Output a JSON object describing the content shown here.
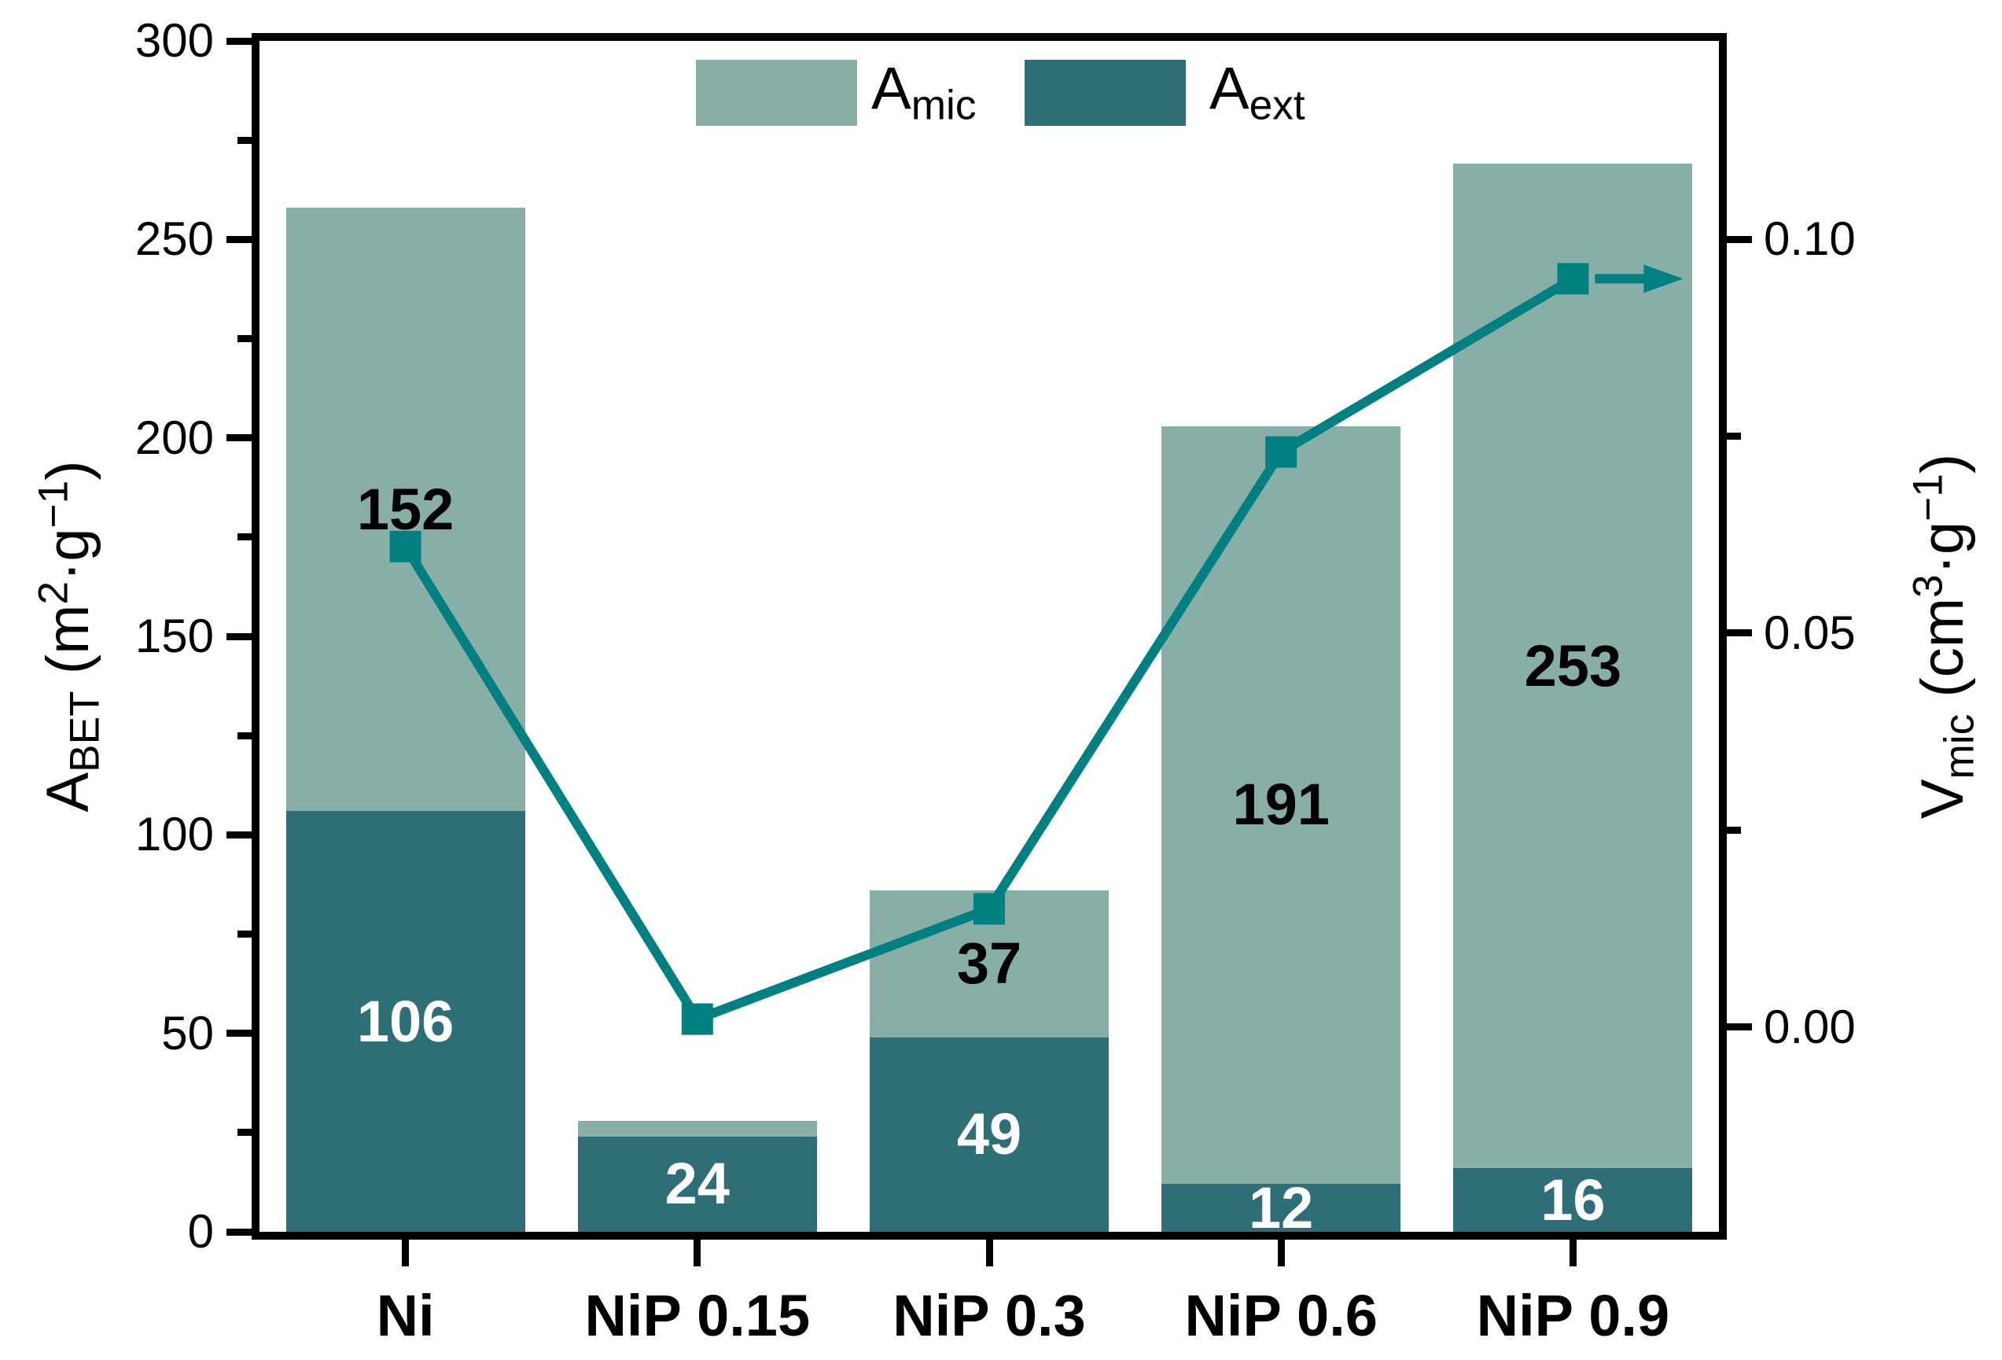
{
  "chart_data": {
    "type": "bar",
    "subtype": "stacked-bars-with-line-overlay",
    "categories": [
      "Ni",
      "NiP 0.15",
      "NiP 0.3",
      "NiP 0.6",
      "NiP 0.9"
    ],
    "series": [
      {
        "name": "Aext",
        "role": "bar-bottom-segment",
        "color": "#2E6E76",
        "values": [
          106,
          24,
          49,
          12,
          16
        ],
        "labels": [
          "106",
          "24",
          "49",
          "12",
          "16"
        ],
        "label_color": "#ffffff"
      },
      {
        "name": "Amic",
        "role": "bar-top-segment",
        "color": "#88AFA7",
        "values": [
          152,
          4,
          37,
          191,
          253
        ],
        "labels": [
          "152",
          "",
          "37",
          "191",
          "253"
        ],
        "label_color": "#000000"
      },
      {
        "name": "Vmic",
        "role": "line-right-axis",
        "color": "#008081",
        "marker": "square",
        "values": [
          0.061,
          0.001,
          0.015,
          0.073,
          0.095
        ]
      }
    ],
    "totals_estimated": [
      258,
      28,
      86,
      203,
      269
    ],
    "left_axis": {
      "lim": [
        0,
        300
      ],
      "major_ticks": [
        {
          "v": 0,
          "label": "0"
        },
        {
          "v": 50,
          "label": "50"
        },
        {
          "v": 100,
          "label": "100"
        },
        {
          "v": 150,
          "label": "150"
        },
        {
          "v": 200,
          "label": "200"
        },
        {
          "v": 250,
          "label": "250"
        },
        {
          "v": 300,
          "label": "300"
        }
      ],
      "minor_ticks": [
        25,
        75,
        125,
        175,
        225,
        275
      ],
      "title_segments": [
        {
          "t": "A"
        },
        {
          "t": "BET",
          "m": "sub"
        },
        {
          "t": " (m"
        },
        {
          "t": "2",
          "m": "sup"
        },
        {
          "t": "·g"
        },
        {
          "t": "−1",
          "m": "sup"
        },
        {
          "t": ")"
        }
      ]
    },
    "right_axis": {
      "lim": [
        -0.026,
        0.1252
      ],
      "major_ticks": [
        {
          "v": 0.0,
          "label": "0.00"
        },
        {
          "v": 0.05,
          "label": "0.05"
        },
        {
          "v": 0.1,
          "label": "0.10"
        }
      ],
      "minor_ticks": [
        0.025,
        0.075
      ],
      "title_segments": [
        {
          "t": "V"
        },
        {
          "t": "mic",
          "m": "sub"
        },
        {
          "t": " (cm"
        },
        {
          "t": "3",
          "m": "sup"
        },
        {
          "t": "·g"
        },
        {
          "t": "−1",
          "m": "sup"
        },
        {
          "t": ")"
        }
      ],
      "arrow_on_last_point": true
    },
    "grid": false,
    "legend_position": "top-center-inside"
  },
  "legend": {
    "items": [
      {
        "base": "A",
        "sub": "mic",
        "color": "#88AFA7"
      },
      {
        "base": "A",
        "sub": "ext",
        "color": "#2E6E76"
      }
    ]
  },
  "colors": {
    "bar_mic": "#88AFA7",
    "bar_ext": "#2E6E76",
    "line": "#008081",
    "frame": "#000000",
    "background": "#ffffff"
  }
}
